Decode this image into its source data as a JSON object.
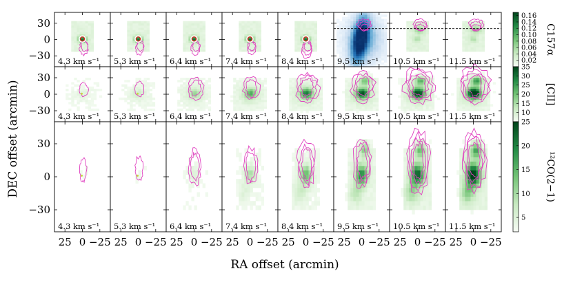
{
  "chart_data": {
    "type": "heatmap",
    "title": "",
    "xlabel": "RA offset (arcmin)",
    "ylabel": "DEC offset (arcmin)",
    "x_ticks": [
      "25",
      "0",
      "−25"
    ],
    "y_ticks": [
      "30",
      "0",
      "−30"
    ],
    "xlim": [
      40,
      -40
    ],
    "ylim": [
      -50,
      50
    ],
    "velocity_labels": [
      "4.3 km s⁻¹",
      "5.3 km s⁻¹",
      "6.4 km s⁻¹",
      "7.4 km s⁻¹",
      "8.4 km s⁻¹",
      "9.5 km s⁻¹",
      "10.5 km s⁻¹",
      "11.5 km s⁻¹"
    ],
    "velocities": [
      4.3,
      5.3,
      6.4,
      7.4,
      8.4,
      9.5,
      10.5,
      11.5
    ],
    "rows": [
      {
        "name": "C157α",
        "colorbar_ticks": [
          "0.16",
          "0.14",
          "0.12",
          "0.10",
          "0.08",
          "0.06",
          "0.04",
          "0.02"
        ],
        "colorbar_values": [
          0.16,
          0.14,
          0.12,
          0.1,
          0.08,
          0.06,
          0.04,
          0.02
        ],
        "range": [
          0.0,
          0.17
        ],
        "peak_intensity": [
          0.12,
          0.13,
          0.13,
          0.12,
          0.12,
          0.16,
          0.05,
          0.04
        ],
        "highlight_panel": 5,
        "cut_line_dec": 20
      },
      {
        "name": "[CII]",
        "colorbar_ticks": [
          "35",
          "30",
          "25",
          "20",
          "15",
          "10"
        ],
        "colorbar_values": [
          35,
          30,
          25,
          20,
          15,
          10
        ],
        "range": [
          5,
          35
        ],
        "peak_intensity": [
          8,
          12,
          19,
          25,
          30,
          31,
          32,
          33
        ]
      },
      {
        "name": "¹²CO(2−1)",
        "colorbar_ticks": [
          "25",
          "20",
          "15",
          "10",
          "5"
        ],
        "colorbar_values": [
          25,
          20,
          15,
          10,
          5
        ],
        "range": [
          2,
          25
        ],
        "peak_intensity": [
          3,
          5,
          9,
          14,
          18,
          20,
          21,
          22
        ]
      }
    ]
  },
  "colors": {
    "green_dark": "#00441b",
    "green_light": "#f7fcf5",
    "blue_dark": "#08306b",
    "contour": "#e040c0",
    "marker": "#d03020"
  }
}
